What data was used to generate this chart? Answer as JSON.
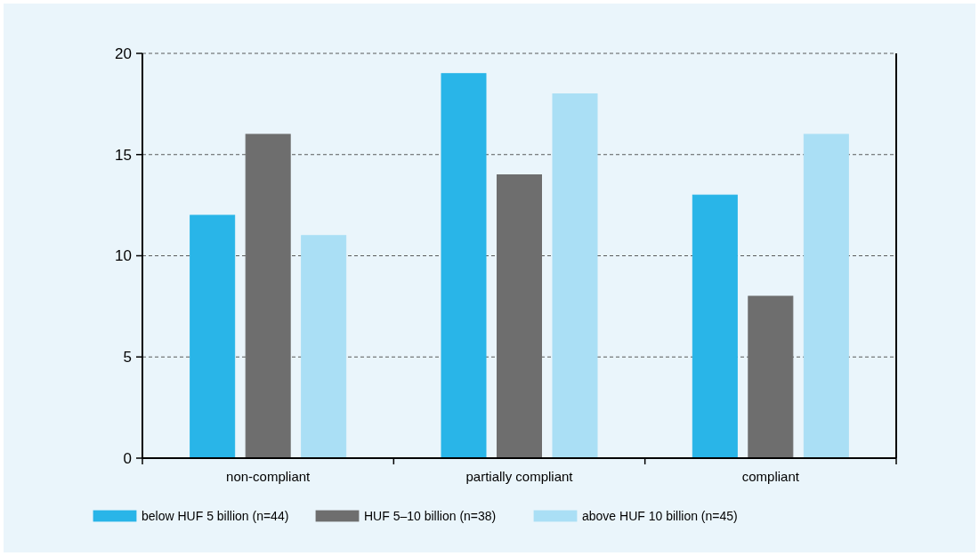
{
  "chart_data": {
    "type": "bar",
    "categories": [
      "non-compliant",
      "partially compliant",
      "compliant"
    ],
    "series": [
      {
        "name": "below HUF 5 billion (n=44)",
        "color": "#29b5e8",
        "values": [
          12,
          19,
          13
        ]
      },
      {
        "name": "HUF 5–10 billion (n=38)",
        "color": "#6e6e6e",
        "values": [
          16,
          14,
          8
        ]
      },
      {
        "name": "above HUF 10 billion (n=45)",
        "color": "#aadff5",
        "values": [
          11,
          18,
          16
        ]
      }
    ],
    "ylim": [
      0,
      20
    ],
    "yticks": [
      0,
      5,
      10,
      15,
      20
    ],
    "grid": "y",
    "legend": "bottom"
  }
}
